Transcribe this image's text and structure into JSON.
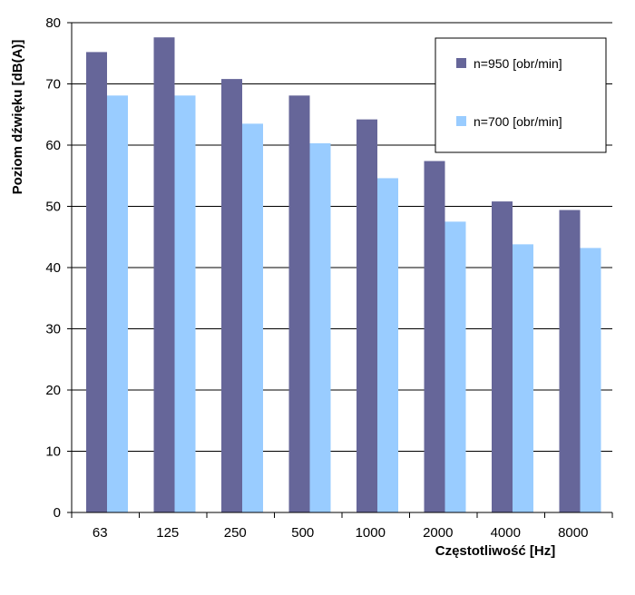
{
  "chart_data": {
    "type": "bar",
    "title": "",
    "xlabel": "Częstotliwość [Hz]",
    "ylabel": "Poziom dźwięku [dB(A)]",
    "categories": [
      "63",
      "125",
      "250",
      "500",
      "1000",
      "2000",
      "4000",
      "8000"
    ],
    "series": [
      {
        "name": "n=950 [obr/min]",
        "color": "#666699",
        "values": [
          75.2,
          77.6,
          70.8,
          68.1,
          64.2,
          57.4,
          50.8,
          49.4
        ]
      },
      {
        "name": "n=700 [obr/min]",
        "color": "#99ccff",
        "values": [
          68.1,
          68.1,
          63.5,
          60.3,
          54.6,
          47.5,
          43.8,
          43.2
        ]
      }
    ],
    "ylim": [
      0,
      80
    ],
    "yticks": [
      "0",
      "10",
      "20",
      "30",
      "40",
      "50",
      "60",
      "70",
      "80"
    ],
    "grid": true,
    "legend_position": "top-right"
  }
}
